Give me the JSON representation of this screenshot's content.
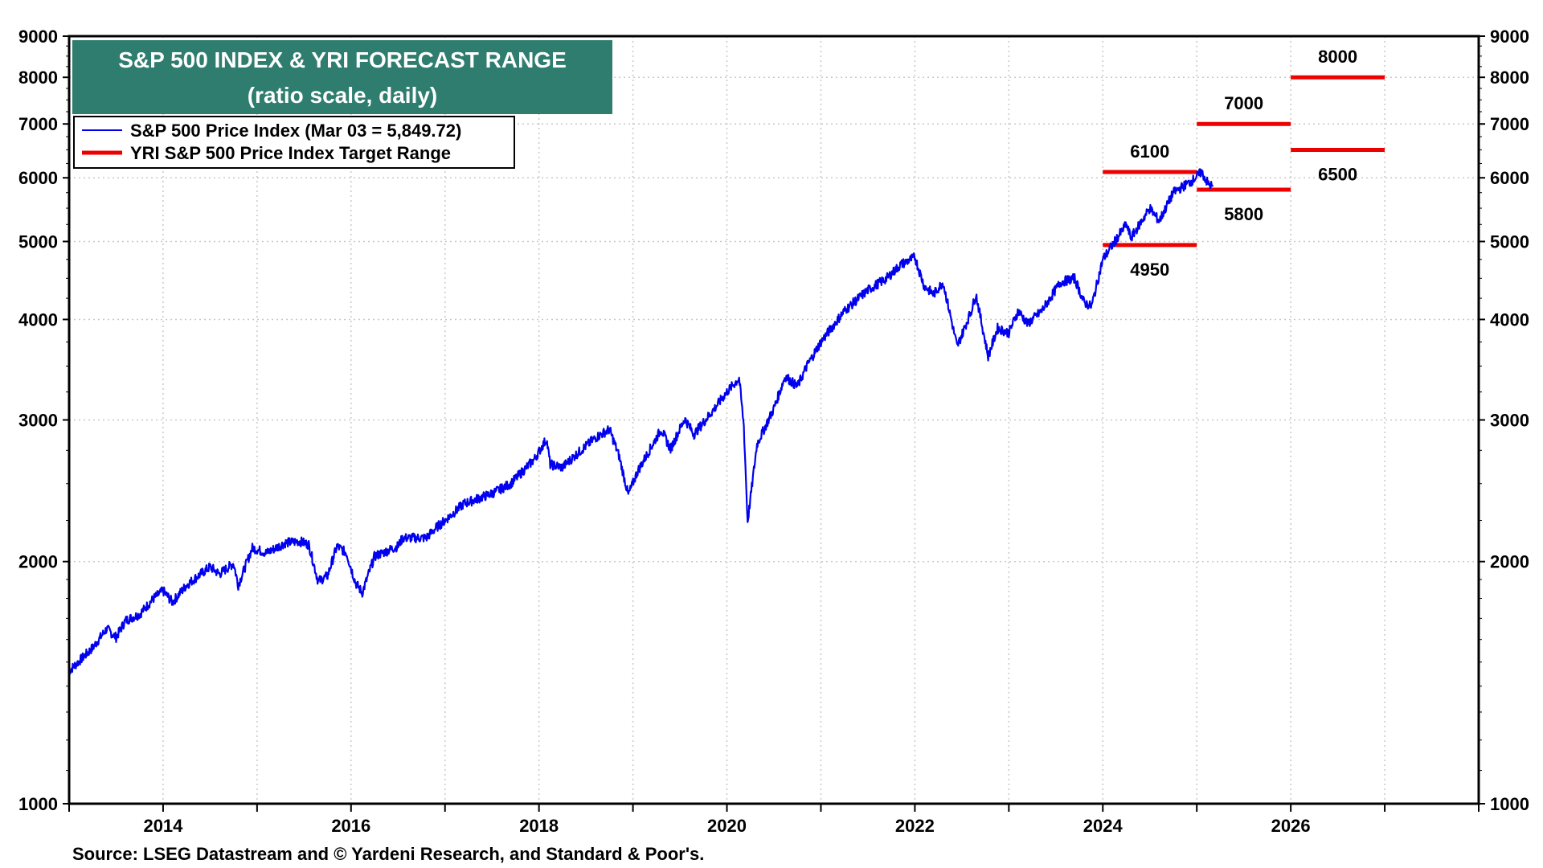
{
  "colors": {
    "title_bg": "#2e7d6e",
    "series_line": "#0000ee",
    "target_line": "#ee0000",
    "grid": "#c8c8c8"
  },
  "source": "Source: LSEG Datastream and © Yardeni Research, and Standard & Poor's.",
  "chart_data": {
    "type": "line",
    "title": "S&P 500 INDEX & YRI FORECAST RANGE",
    "subtitle": "(ratio scale, daily)",
    "y_scale": "log",
    "ylim": [
      1000,
      9000
    ],
    "xlim": [
      2013.0,
      2028.0
    ],
    "y_ticks": [
      "1000",
      "2000",
      "3000",
      "4000",
      "5000",
      "6000",
      "7000",
      "8000",
      "9000"
    ],
    "x_ticks": [
      "2014",
      "2016",
      "2018",
      "2020",
      "2022",
      "2024",
      "2026"
    ],
    "grid": true,
    "legend_position": "top-left",
    "series": [
      {
        "name": "S&P 500 Price Index (Mar 03 = 5,849.72)",
        "color": "#0000ee",
        "points": [
          [
            2013.0,
            1462
          ],
          [
            2013.25,
            1562
          ],
          [
            2013.4,
            1650
          ],
          [
            2013.5,
            1610
          ],
          [
            2013.6,
            1690
          ],
          [
            2013.75,
            1720
          ],
          [
            2013.9,
            1800
          ],
          [
            2014.0,
            1840
          ],
          [
            2014.1,
            1780
          ],
          [
            2014.25,
            1870
          ],
          [
            2014.4,
            1930
          ],
          [
            2014.5,
            1970
          ],
          [
            2014.6,
            1930
          ],
          [
            2014.75,
            1990
          ],
          [
            2014.8,
            1870
          ],
          [
            2014.95,
            2080
          ],
          [
            2015.1,
            2050
          ],
          [
            2015.3,
            2110
          ],
          [
            2015.45,
            2120
          ],
          [
            2015.55,
            2100
          ],
          [
            2015.65,
            1890
          ],
          [
            2015.75,
            1920
          ],
          [
            2015.85,
            2090
          ],
          [
            2015.95,
            2050
          ],
          [
            2016.05,
            1880
          ],
          [
            2016.12,
            1830
          ],
          [
            2016.25,
            2030
          ],
          [
            2016.5,
            2090
          ],
          [
            2016.55,
            2140
          ],
          [
            2016.8,
            2140
          ],
          [
            2016.9,
            2200
          ],
          [
            2017.0,
            2250
          ],
          [
            2017.2,
            2360
          ],
          [
            2017.5,
            2430
          ],
          [
            2017.7,
            2500
          ],
          [
            2017.95,
            2680
          ],
          [
            2018.08,
            2840
          ],
          [
            2018.12,
            2640
          ],
          [
            2018.25,
            2620
          ],
          [
            2018.4,
            2720
          ],
          [
            2018.6,
            2850
          ],
          [
            2018.75,
            2920
          ],
          [
            2018.85,
            2710
          ],
          [
            2018.95,
            2420
          ],
          [
            2019.05,
            2590
          ],
          [
            2019.3,
            2920
          ],
          [
            2019.4,
            2760
          ],
          [
            2019.55,
            3010
          ],
          [
            2019.65,
            2880
          ],
          [
            2019.85,
            3080
          ],
          [
            2020.0,
            3250
          ],
          [
            2020.13,
            3380
          ],
          [
            2020.18,
            2950
          ],
          [
            2020.22,
            2240
          ],
          [
            2020.32,
            2800
          ],
          [
            2020.5,
            3100
          ],
          [
            2020.62,
            3400
          ],
          [
            2020.75,
            3300
          ],
          [
            2020.85,
            3500
          ],
          [
            2021.0,
            3750
          ],
          [
            2021.25,
            4100
          ],
          [
            2021.5,
            4350
          ],
          [
            2021.7,
            4500
          ],
          [
            2021.85,
            4680
          ],
          [
            2022.0,
            4780
          ],
          [
            2022.1,
            4400
          ],
          [
            2022.2,
            4300
          ],
          [
            2022.3,
            4450
          ],
          [
            2022.45,
            3700
          ],
          [
            2022.6,
            4100
          ],
          [
            2022.65,
            4300
          ],
          [
            2022.78,
            3600
          ],
          [
            2022.88,
            3900
          ],
          [
            2023.0,
            3850
          ],
          [
            2023.1,
            4100
          ],
          [
            2023.2,
            3950
          ],
          [
            2023.35,
            4100
          ],
          [
            2023.55,
            4450
          ],
          [
            2023.7,
            4500
          ],
          [
            2023.8,
            4200
          ],
          [
            2023.88,
            4150
          ],
          [
            2024.0,
            4750
          ],
          [
            2024.25,
            5250
          ],
          [
            2024.3,
            5050
          ],
          [
            2024.5,
            5500
          ],
          [
            2024.6,
            5300
          ],
          [
            2024.75,
            5750
          ],
          [
            2024.95,
            5950
          ],
          [
            2025.05,
            6100
          ],
          [
            2025.12,
            5900
          ],
          [
            2025.17,
            5850
          ]
        ]
      }
    ],
    "targets": {
      "name": "YRI S&P 500 Price Index Target Range",
      "color": "#ee0000",
      "items": [
        {
          "x0": 2024.0,
          "x1": 2025.0,
          "low": 4950,
          "high": 6100,
          "low_label": "4950",
          "high_label": "6100"
        },
        {
          "x0": 2025.0,
          "x1": 2026.0,
          "low": 5800,
          "high": 7000,
          "low_label": "5800",
          "high_label": "7000"
        },
        {
          "x0": 2026.0,
          "x1": 2027.0,
          "low": 6500,
          "high": 8000,
          "low_label": "6500",
          "high_label": "8000"
        }
      ]
    }
  }
}
